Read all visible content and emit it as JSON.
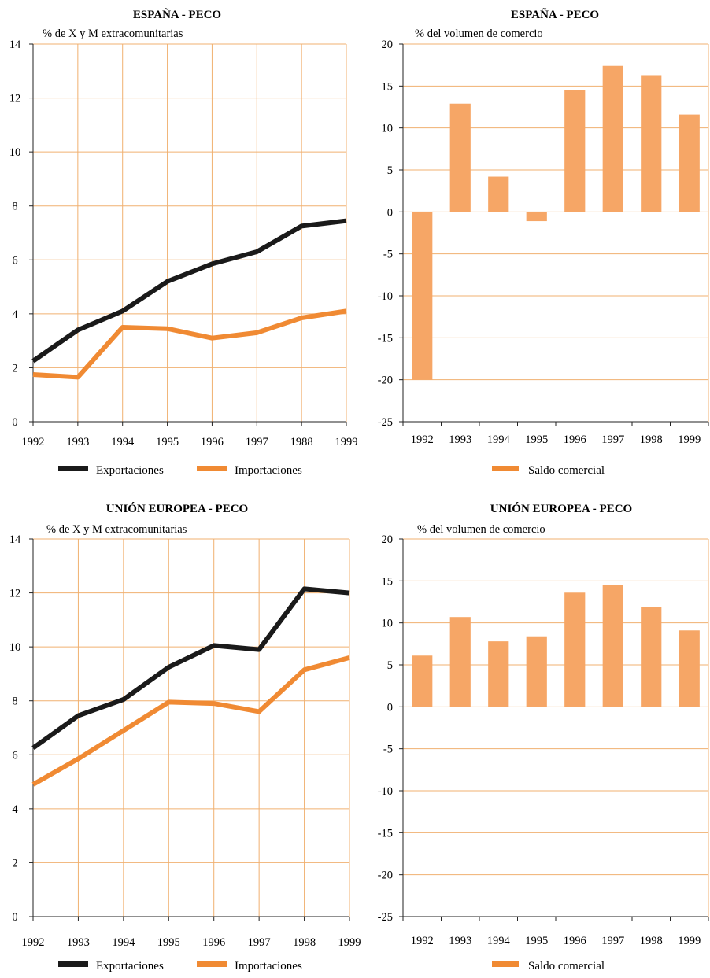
{
  "colors": {
    "export": "#1a1a1a",
    "import": "#f08a33",
    "bar": "#f6a666",
    "grid": "#f0b070"
  },
  "chart_data": [
    {
      "type": "line",
      "title": "ESPAÑA - PECO",
      "ylabel": "% de X y M extracomunitarias",
      "x": [
        "1992",
        "1993",
        "1994",
        "1995",
        "1996",
        "1997",
        "1988",
        "1999"
      ],
      "ylim": [
        0,
        14
      ],
      "yticks": [
        "0",
        "2",
        "4",
        "6",
        "8",
        "10",
        "12",
        "14"
      ],
      "series": [
        {
          "name": "Exportaciones",
          "values": [
            2.25,
            3.4,
            4.1,
            5.2,
            5.85,
            6.3,
            7.25,
            7.45
          ]
        },
        {
          "name": "Importaciones",
          "values": [
            1.75,
            1.65,
            3.5,
            3.45,
            3.1,
            3.3,
            3.85,
            4.1
          ]
        }
      ],
      "legend": [
        "Exportaciones",
        "Importaciones"
      ]
    },
    {
      "type": "bar",
      "title": "ESPAÑA - PECO",
      "ylabel": "% del volumen de comercio",
      "categories": [
        "1992",
        "1993",
        "1994",
        "1995",
        "1996",
        "1997",
        "1998",
        "1999"
      ],
      "ylim": [
        -25,
        20
      ],
      "yticks": [
        "-25",
        "-20",
        "-15",
        "-10",
        "-5",
        "0",
        "5",
        "10",
        "15",
        "20"
      ],
      "values": [
        -20,
        12.9,
        4.2,
        -1.1,
        14.5,
        17.4,
        16.3,
        11.6
      ],
      "legend": [
        "Saldo comercial"
      ]
    },
    {
      "type": "line",
      "title": "UNIÓN EUROPEA - PECO",
      "ylabel": "% de X y M extracomunitarias",
      "x": [
        "1992",
        "1993",
        "1994",
        "1995",
        "1996",
        "1997",
        "1998",
        "1999"
      ],
      "ylim": [
        0,
        14
      ],
      "yticks": [
        "0",
        "2",
        "4",
        "6",
        "8",
        "10",
        "12",
        "14"
      ],
      "series": [
        {
          "name": "Exportaciones",
          "values": [
            6.25,
            7.45,
            8.05,
            9.25,
            10.05,
            9.9,
            12.15,
            12.0
          ]
        },
        {
          "name": "Importaciones",
          "values": [
            4.9,
            5.85,
            6.9,
            7.95,
            7.9,
            7.6,
            9.15,
            9.6
          ]
        }
      ],
      "legend": [
        "Exportaciones",
        "Importaciones"
      ]
    },
    {
      "type": "bar",
      "title": "UNIÓN EUROPEA - PECO",
      "ylabel": "% del volumen de comercio",
      "categories": [
        "1992",
        "1993",
        "1994",
        "1995",
        "1996",
        "1997",
        "1998",
        "1999"
      ],
      "ylim": [
        -25,
        20
      ],
      "yticks": [
        "-25",
        "-20",
        "-15",
        "-10",
        "-5",
        "0",
        "5",
        "10",
        "15",
        "20"
      ],
      "values": [
        6.1,
        10.7,
        7.8,
        8.4,
        13.6,
        14.5,
        11.9,
        9.1
      ],
      "legend": [
        "Saldo comercial"
      ]
    }
  ]
}
